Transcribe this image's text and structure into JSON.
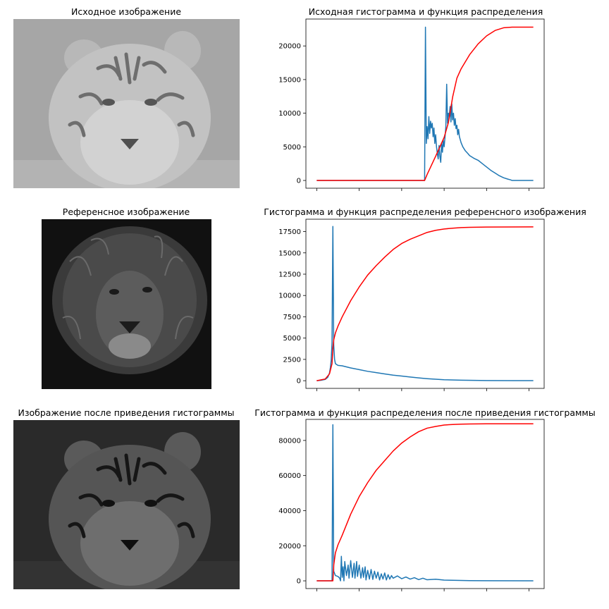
{
  "panels": [
    {
      "image_title": "Исходное изображение",
      "image_subject": "tiger",
      "image_tone": "light-gray",
      "chart_title": "Исходная гистограмма и функция распределения"
    },
    {
      "image_title": "Референсное изображение",
      "image_subject": "lion",
      "image_tone": "dark",
      "chart_title": "Гистограмма и функция распределения референсного изображения"
    },
    {
      "image_title": "Изображение после приведения гистограммы",
      "image_subject": "tiger",
      "image_tone": "dark",
      "chart_title": "Гистограмма и функция распределения после приведения гистограммы"
    }
  ],
  "colors": {
    "histogram": "#1f77b4",
    "cdf": "#ff0000"
  },
  "chart_data": [
    {
      "type": "line",
      "title": "Исходная гистограмма и функция распределения",
      "xlim": [
        -12.75,
        267.75
      ],
      "ylim": [
        -1150,
        24000
      ],
      "xticks": [
        0,
        50,
        100,
        150,
        200,
        250
      ],
      "yticks": [
        0,
        5000,
        10000,
        15000,
        20000
      ],
      "series": [
        {
          "role": "histogram",
          "x": [
            0,
            127,
            128,
            129,
            130,
            131,
            132,
            133,
            134,
            135,
            136,
            137,
            138,
            139,
            140,
            141,
            142,
            143,
            144,
            145,
            146,
            147,
            148,
            149,
            150,
            151,
            152,
            153,
            154,
            155,
            156,
            157,
            158,
            159,
            160,
            161,
            162,
            163,
            164,
            165,
            166,
            167,
            168,
            170,
            172,
            175,
            178,
            180,
            185,
            190,
            195,
            200,
            205,
            210,
            215,
            220,
            225,
            228,
            230,
            232,
            255
          ],
          "values": [
            0,
            0,
            22800,
            5500,
            8000,
            6200,
            9500,
            7000,
            8800,
            7800,
            8500,
            6500,
            7800,
            5500,
            6800,
            5000,
            4000,
            3200,
            5200,
            3600,
            2700,
            5600,
            4200,
            6000,
            5000,
            6400,
            8000,
            14300,
            8500,
            10000,
            9500,
            11000,
            8700,
            11400,
            9000,
            10000,
            8200,
            9200,
            7700,
            8200,
            6800,
            7600,
            6500,
            5600,
            5000,
            4400,
            4000,
            3700,
            3300,
            3000,
            2500,
            2000,
            1500,
            1100,
            700,
            400,
            200,
            100,
            0,
            0,
            0
          ]
        },
        {
          "role": "cdf",
          "x": [
            0,
            127,
            130,
            140,
            150,
            155,
            160,
            165,
            170,
            180,
            190,
            200,
            210,
            220,
            230,
            240,
            255
          ],
          "values": [
            0,
            0,
            900,
            3600,
            6400,
            8600,
            12400,
            15200,
            16600,
            18700,
            20300,
            21500,
            22300,
            22700,
            22800,
            22800,
            22800
          ]
        }
      ]
    },
    {
      "type": "line",
      "title": "Гистограмма и функция распределения референсного изображения",
      "xlim": [
        -12.75,
        267.75
      ],
      "ylim": [
        -900,
        18950
      ],
      "xticks": [
        0,
        50,
        100,
        150,
        200,
        250
      ],
      "yticks": [
        0,
        2500,
        5000,
        7500,
        10000,
        12500,
        15000,
        17500
      ],
      "series": [
        {
          "role": "histogram",
          "x": [
            0,
            5,
            10,
            13,
            15,
            16,
            17,
            18,
            19,
            20,
            21,
            22,
            25,
            30,
            40,
            50,
            60,
            70,
            80,
            90,
            100,
            110,
            120,
            130,
            140,
            150,
            170,
            200,
            230,
            255
          ],
          "values": [
            0,
            50,
            150,
            400,
            900,
            1500,
            2400,
            4500,
            18100,
            4200,
            2500,
            2000,
            1800,
            1750,
            1500,
            1300,
            1100,
            950,
            800,
            650,
            550,
            430,
            330,
            240,
            170,
            110,
            60,
            20,
            10,
            5
          ]
        },
        {
          "role": "cdf",
          "x": [
            0,
            10,
            15,
            18,
            19,
            20,
            22,
            25,
            30,
            40,
            50,
            60,
            70,
            80,
            90,
            100,
            110,
            120,
            130,
            140,
            150,
            160,
            170,
            180,
            200,
            255
          ],
          "values": [
            0,
            200,
            800,
            2000,
            3800,
            4800,
            5600,
            6400,
            7500,
            9400,
            11000,
            12400,
            13500,
            14500,
            15400,
            16100,
            16600,
            17000,
            17400,
            17650,
            17800,
            17900,
            17970,
            18000,
            18030,
            18050
          ]
        }
      ]
    },
    {
      "type": "line",
      "title": "Гистограмма и функция распределения после приведения гистограммы",
      "xlim": [
        -12.75,
        267.75
      ],
      "ylim": [
        -4400,
        92000
      ],
      "xticks": [
        0,
        50,
        100,
        150,
        200,
        250
      ],
      "yticks": [
        0,
        20000,
        40000,
        60000,
        80000
      ],
      "series": [
        {
          "role": "histogram",
          "x": [
            0,
            17,
            18,
            19,
            20,
            22,
            25,
            27,
            28,
            29,
            30,
            31,
            32,
            33,
            35,
            37,
            38,
            40,
            42,
            44,
            45,
            47,
            48,
            50,
            52,
            54,
            55,
            57,
            58,
            60,
            62,
            64,
            66,
            68,
            70,
            72,
            74,
            76,
            78,
            80,
            82,
            84,
            86,
            88,
            90,
            95,
            100,
            105,
            110,
            115,
            120,
            125,
            130,
            140,
            150,
            160,
            180,
            200,
            255
          ],
          "values": [
            0,
            0,
            0,
            89000,
            5500,
            3000,
            2500,
            1500,
            0,
            14000,
            2000,
            8000,
            0,
            11000,
            3000,
            9000,
            1500,
            11500,
            2000,
            10000,
            1500,
            11000,
            2500,
            9000,
            1500,
            7500,
            2000,
            8000,
            500,
            6000,
            1000,
            6500,
            800,
            5500,
            1500,
            5000,
            500,
            4000,
            1000,
            4500,
            500,
            3500,
            1000,
            3000,
            1500,
            2800,
            1200,
            2200,
            1000,
            1800,
            700,
            1500,
            600,
            900,
            400,
            300,
            100,
            50,
            0
          ]
        },
        {
          "role": "cdf",
          "x": [
            0,
            19,
            20,
            22,
            25,
            30,
            40,
            50,
            60,
            70,
            80,
            90,
            100,
            110,
            120,
            130,
            140,
            150,
            160,
            170,
            180,
            200,
            255
          ],
          "values": [
            0,
            0,
            9000,
            16000,
            20500,
            26000,
            38000,
            48000,
            56000,
            63000,
            68500,
            74000,
            78500,
            82000,
            85000,
            87000,
            88000,
            88800,
            89100,
            89300,
            89400,
            89500,
            89500
          ]
        }
      ]
    }
  ]
}
